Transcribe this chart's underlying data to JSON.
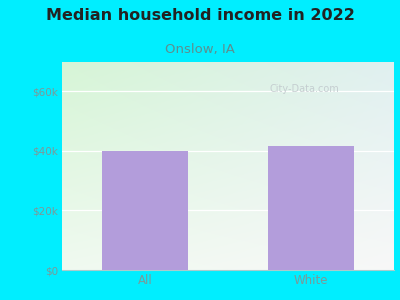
{
  "title": "Median household income in 2022",
  "subtitle": "Onslow, IA",
  "categories": [
    "All",
    "White"
  ],
  "values": [
    40000,
    41500
  ],
  "bar_color": "#b39ddb",
  "background_outer": "#00eeff",
  "grad_top_left": "#d6f5d6",
  "grad_bottom_right": "#f5f5f5",
  "title_fontsize": 11.5,
  "title_color": "#222222",
  "subtitle_fontsize": 9.5,
  "subtitle_color": "#5b9090",
  "tick_label_color": "#7a9a9a",
  "ylim": [
    0,
    70000
  ],
  "yticks": [
    0,
    20000,
    40000,
    60000
  ],
  "ytick_labels": [
    "$0",
    "$20k",
    "$40k",
    "$60k"
  ],
  "watermark": "City-Data.com",
  "watermark_color": "#c0c8cc"
}
